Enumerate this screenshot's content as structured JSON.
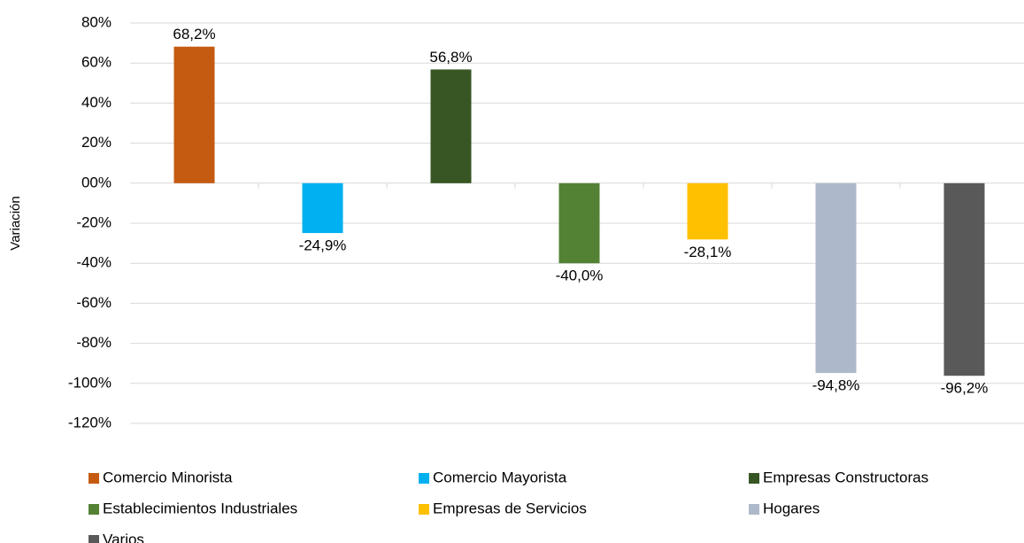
{
  "chart_data": {
    "type": "bar",
    "ylabel": "Variación",
    "categories": [
      "Comercio Minorista",
      "Comercio Mayorista",
      "Empresas Constructoras",
      "Establecimientos Industriales",
      "Empresas de Servicios",
      "Hogares",
      "Varios"
    ],
    "values": [
      68.2,
      -24.9,
      56.8,
      -40.0,
      -28.1,
      -94.8,
      -96.2
    ],
    "value_labels": [
      "68,2%",
      "-24,9%",
      "56,8%",
      "-40,0%",
      "-28,1%",
      "-94,8%",
      "-96,2%"
    ],
    "colors": [
      "#c55a11",
      "#00b0f0",
      "#375623",
      "#548235",
      "#ffc000",
      "#adb9ca",
      "#595959"
    ],
    "ylim": [
      -120,
      80
    ],
    "yticks": [
      {
        "value": -120,
        "label": "-120%"
      },
      {
        "value": -100,
        "label": "-100%"
      },
      {
        "value": -80,
        "label": "-80%"
      },
      {
        "value": -60,
        "label": "-60%"
      },
      {
        "value": -40,
        "label": "-40%"
      },
      {
        "value": -20,
        "label": "-20%"
      },
      {
        "value": 0,
        "label": "00%"
      },
      {
        "value": 20,
        "label": "20%"
      },
      {
        "value": 40,
        "label": "40%"
      },
      {
        "value": 60,
        "label": "60%"
      },
      {
        "value": 80,
        "label": "80%"
      }
    ],
    "grid": true
  }
}
